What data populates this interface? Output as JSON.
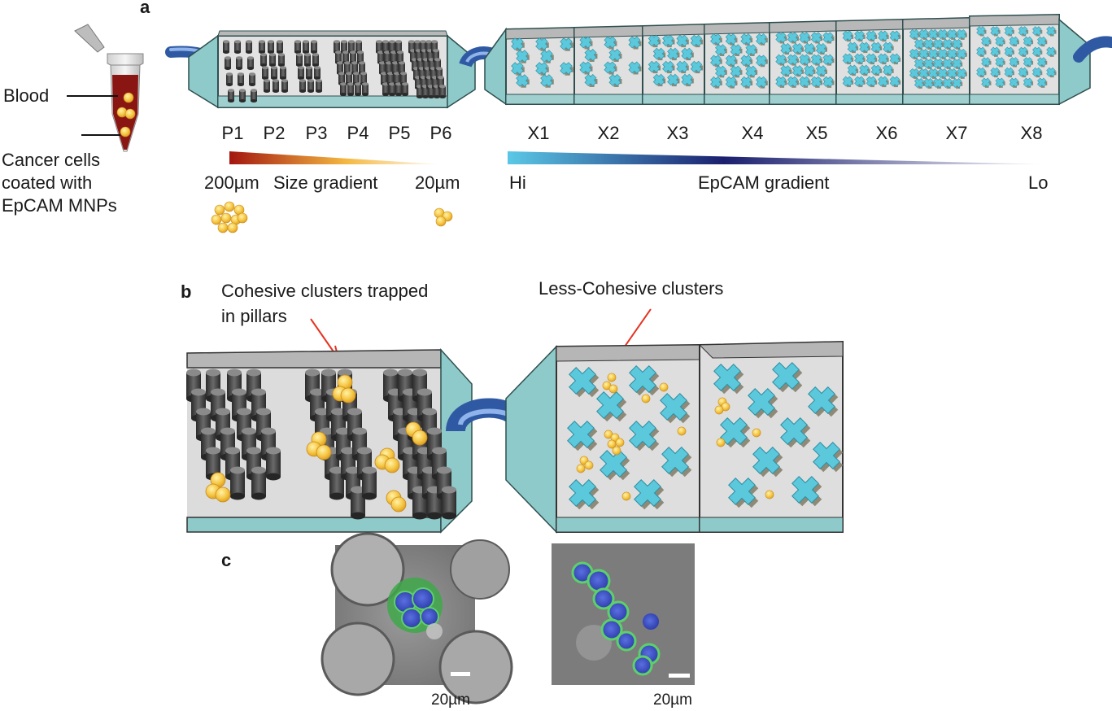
{
  "panels": {
    "a": "a",
    "b": "b",
    "c": "c"
  },
  "tube": {
    "blood_label": "Blood",
    "cells_label_lines": [
      "Cancer cells",
      "coated with",
      "EpCAM MNPs"
    ]
  },
  "pillar_chambers": [
    "P1",
    "P2",
    "P3",
    "P4",
    "P5",
    "P6"
  ],
  "cross_chambers": [
    "X1",
    "X2",
    "X3",
    "X4",
    "X5",
    "X6",
    "X7",
    "X8"
  ],
  "size_gradient": {
    "left": "200µm",
    "title": "Size gradient",
    "right": "20µm",
    "colors": [
      "#a3160f",
      "#f4b942",
      "#ffffff"
    ]
  },
  "epcam_gradient": {
    "left": "Hi",
    "title": "EpCAM gradient",
    "right": "Lo",
    "colors": [
      "#5bc8e6",
      "#1b1f6e",
      "#ffffff"
    ]
  },
  "annotations": {
    "cohesive_lines": [
      "Cohesive clusters trapped",
      "in pillars"
    ],
    "less_cohesive": "Less-Cohesive clusters"
  },
  "micrographs": [
    {
      "scale_label": "20µm"
    },
    {
      "scale_label": "20µm"
    }
  ],
  "colors": {
    "chamber_glass": "#d6d6d6",
    "chamber_side": "#8fcaca",
    "tubing": "#4a79c4",
    "pillar": "#4a4a4a",
    "cross": "#5bc8dc",
    "cell": "#f5c542",
    "arrow": "#e53322"
  }
}
